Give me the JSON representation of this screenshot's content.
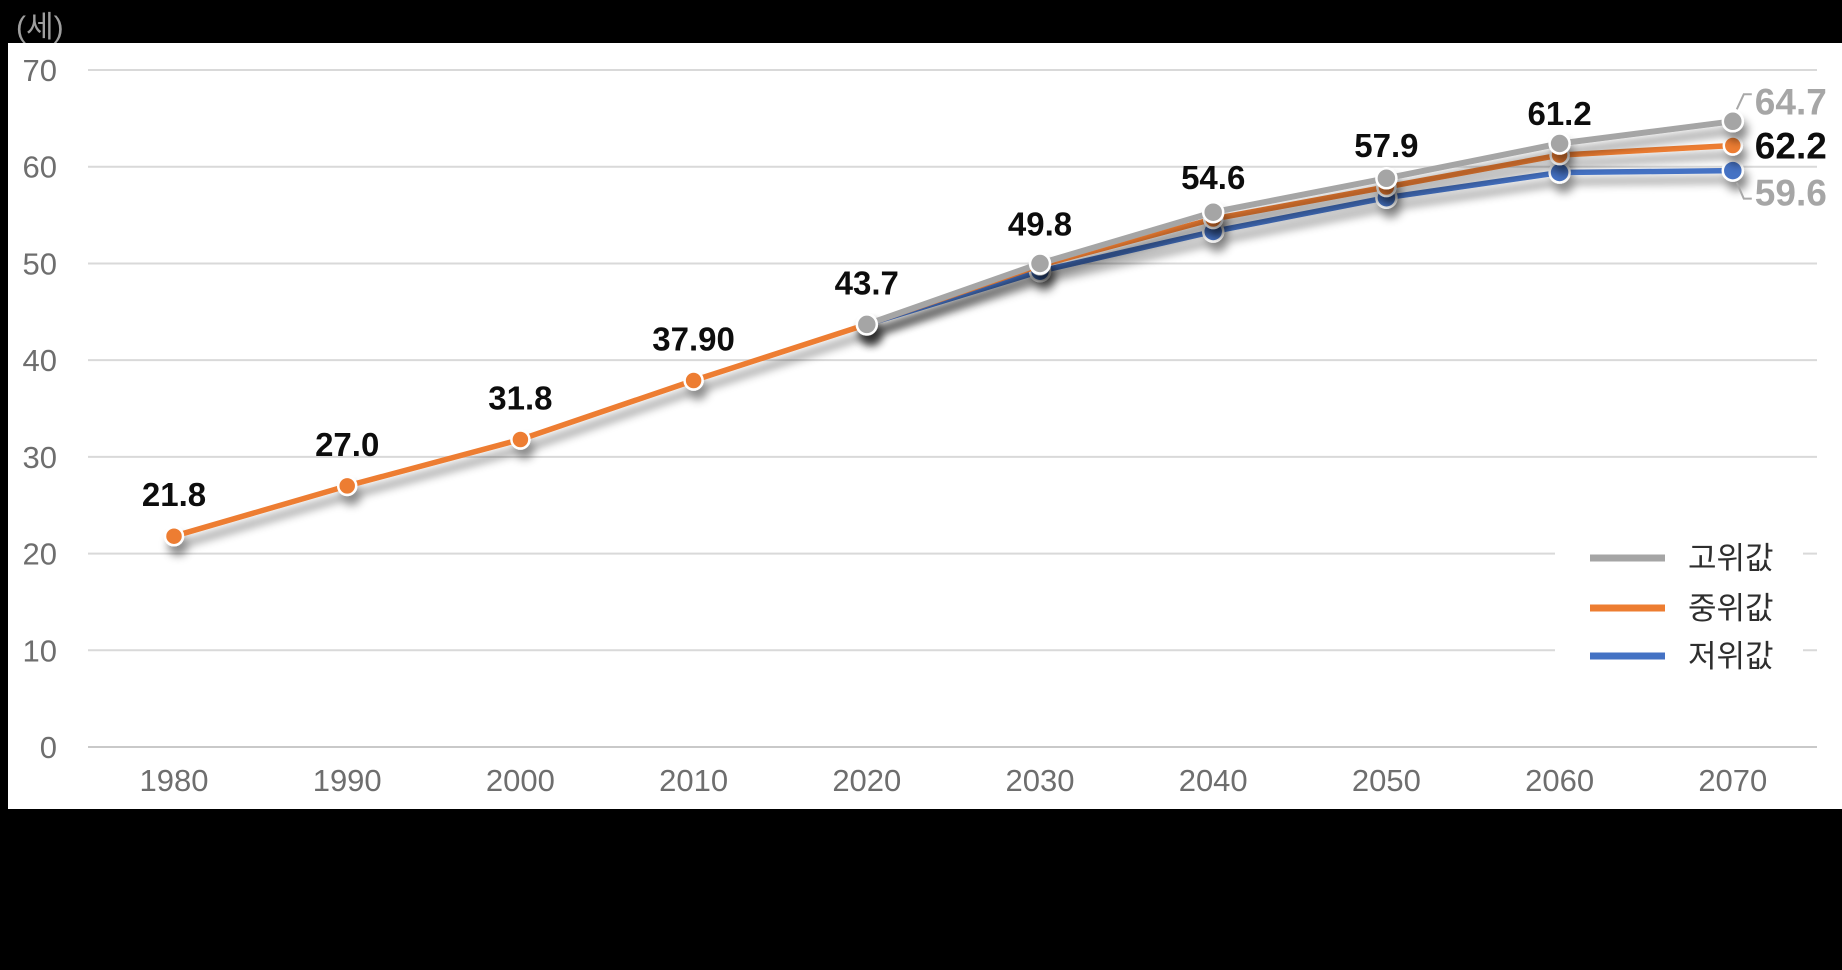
{
  "unit_label": "(세)",
  "colors": {
    "canvas_bg": "#000000",
    "plot_bg": "#ffffff",
    "grid": "#d9d9d9",
    "axis_text": "#6e6e6e",
    "unit_text": "#9e9e9e",
    "point_label": "#0d0d0d",
    "end_label_gray": "#a6a6a6",
    "legend_text": "#2e2e2e",
    "leader": "#a8a8a8",
    "series_high": "#a5a5a5",
    "series_mid": "#ed7d31",
    "series_low": "#4472c4"
  },
  "chart_data": {
    "type": "line",
    "unit": "(세)",
    "categories": [
      "1980",
      "1990",
      "2000",
      "2010",
      "2020",
      "2030",
      "2040",
      "2050",
      "2060",
      "2070"
    ],
    "ylim": [
      0,
      70
    ],
    "ytick_step": 10,
    "y_ticks": [
      "0",
      "10",
      "20",
      "30",
      "40",
      "50",
      "60",
      "70"
    ],
    "grid": true,
    "legend_position": "middle-right",
    "series": [
      {
        "id": "high",
        "name": "고위값",
        "color": "#a5a5a5",
        "values": [
          null,
          null,
          null,
          null,
          43.7,
          50.0,
          55.3,
          58.8,
          62.4,
          64.7
        ],
        "end_label": "64.7",
        "end_label_color": "#a6a6a6",
        "marker_radius": 10
      },
      {
        "id": "mid",
        "name": "중위값",
        "color": "#ed7d31",
        "values": [
          21.8,
          27.0,
          31.8,
          37.9,
          43.7,
          49.8,
          54.6,
          57.9,
          61.2,
          62.2
        ],
        "point_labels": [
          "21.8",
          "27.0",
          "31.8",
          "37.90",
          "43.7",
          "49.8",
          "54.6",
          "57.9",
          "61.2"
        ],
        "end_label": "62.2",
        "end_label_color": "#0d0d0d",
        "marker_radius": 9
      },
      {
        "id": "low",
        "name": "저위값",
        "color": "#4472c4",
        "values": [
          null,
          null,
          null,
          null,
          43.7,
          49.2,
          53.3,
          56.8,
          59.4,
          59.6
        ],
        "end_label": "59.6",
        "end_label_color": "#a6a6a6",
        "marker_radius": 10
      }
    ]
  },
  "legend": {
    "items": [
      {
        "label": "고위값",
        "color": "#a5a5a5"
      },
      {
        "label": "중위값",
        "color": "#ed7d31"
      },
      {
        "label": "저위값",
        "color": "#4472c4"
      }
    ]
  }
}
